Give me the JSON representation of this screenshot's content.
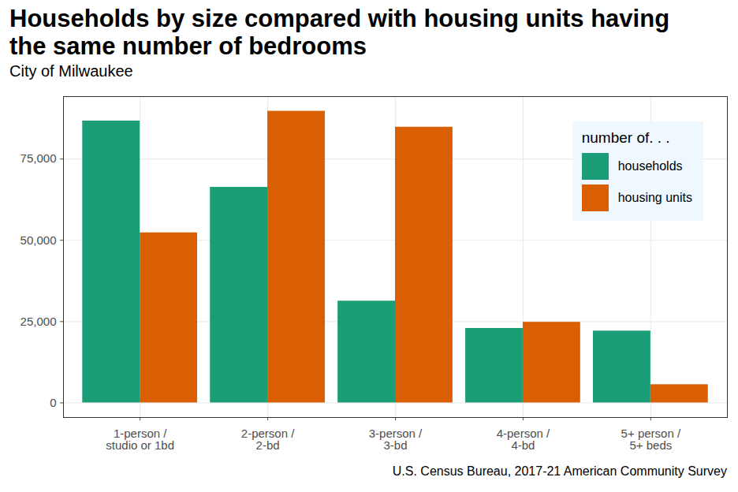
{
  "chart_data": {
    "type": "bar",
    "title": "Households by size compared with housing units having the same number of bedrooms",
    "subtitle": "City of Milwaukee",
    "caption": "U.S. Census Bureau, 2017-21 American Community Survey",
    "legend_title": "number of. . .",
    "x_label": null,
    "y_label": null,
    "categories": [
      "1-person /\nstudio or 1bd",
      "2-person /\n2-bd",
      "3-person /\n3-bd",
      "4-person /\n4-bd",
      "5+ person /\n5+ beds"
    ],
    "series": [
      {
        "name": "households",
        "color": "#1b9e77",
        "values": [
          86700,
          66300,
          31300,
          22900,
          22100
        ]
      },
      {
        "name": "housing units",
        "color": "#d95f02",
        "values": [
          52300,
          89700,
          84800,
          24800,
          5600
        ]
      }
    ],
    "ylim": [
      -4500,
      94200
    ],
    "yticks": [
      0,
      {
        "value": 25000,
        "label": "25,000"
      },
      {
        "value": 50000,
        "label": "50,000"
      },
      {
        "value": 75000,
        "label": "75,000"
      }
    ],
    "grid": true,
    "legend": "top-right"
  }
}
